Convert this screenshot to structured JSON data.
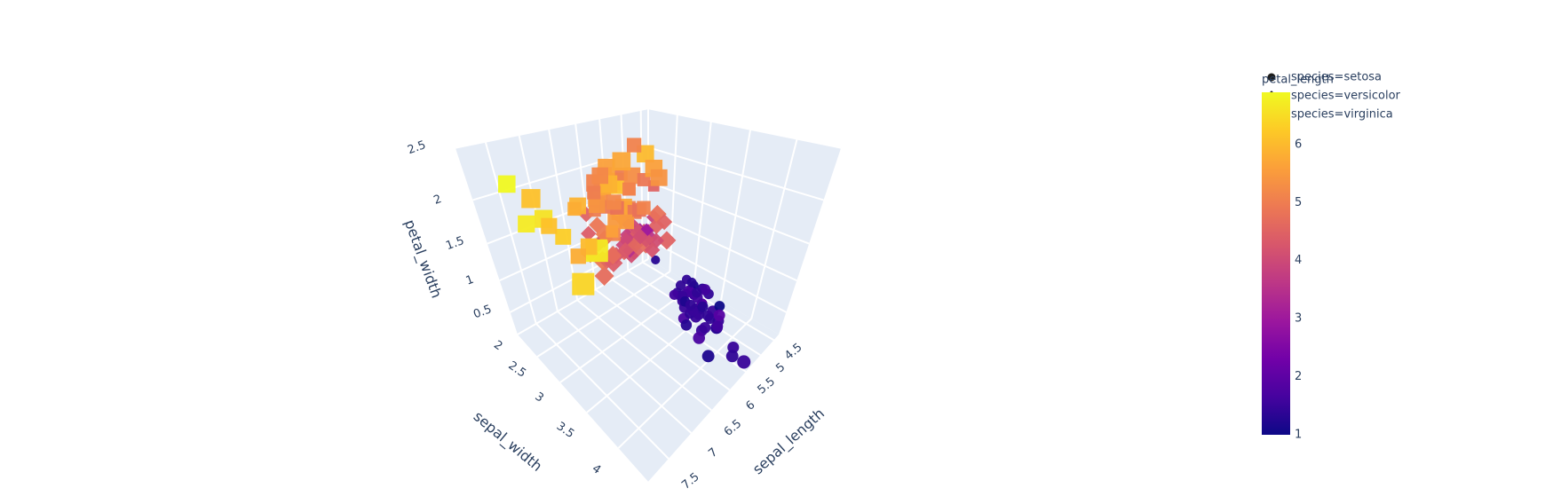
{
  "chart_data": {
    "type": "scatter3d",
    "xlabel": "sepal_length",
    "ylabel": "sepal_width",
    "zlabel": "petal_width",
    "xlim": [
      4.3,
      7.9
    ],
    "xticks": [
      4.5,
      5,
      5.5,
      6,
      6.5,
      7,
      7.5
    ],
    "ylim": [
      2,
      4.4
    ],
    "yticks": [
      2,
      2.5,
      3,
      3.5,
      4
    ],
    "zlim": [
      0.1,
      2.5
    ],
    "zticks": [
      0.5,
      1,
      1.5,
      2,
      2.5
    ],
    "grid": true,
    "legend": "top-right",
    "colorbar": {
      "title": "petal_length",
      "range": [
        1,
        6.9
      ],
      "ticks": [
        1,
        2,
        3,
        4,
        5,
        6
      ],
      "colorscale": [
        "#0d0887",
        "#46039f",
        "#7201a8",
        "#9c179e",
        "#bd3786",
        "#d8576b",
        "#ed7953",
        "#fb9f3a",
        "#fdca26",
        "#f0f921"
      ]
    },
    "series": [
      {
        "name": "species=setosa",
        "symbol": "circle",
        "x": [
          5.1,
          4.9,
          4.7,
          4.6,
          5.0,
          5.4,
          4.6,
          5.0,
          4.4,
          4.9,
          5.4,
          4.8,
          4.8,
          4.3,
          5.8,
          5.7,
          5.4,
          5.1,
          5.7,
          5.1,
          5.4,
          5.1,
          4.6,
          5.1,
          4.8,
          5.0,
          5.0,
          5.2,
          5.2,
          4.7,
          4.8,
          5.4,
          5.2,
          5.5,
          4.9,
          5.0,
          5.5,
          4.9,
          4.4,
          5.1,
          5.0,
          4.5,
          4.4,
          5.0,
          5.1,
          4.8,
          5.1,
          4.6,
          5.3,
          5.0
        ],
        "y": [
          3.5,
          3.0,
          3.2,
          3.1,
          3.6,
          3.9,
          3.4,
          3.4,
          2.9,
          3.1,
          3.7,
          3.4,
          3.0,
          3.0,
          4.0,
          4.4,
          3.9,
          3.5,
          3.8,
          3.8,
          3.4,
          3.7,
          3.6,
          3.3,
          3.4,
          3.0,
          3.4,
          3.5,
          3.4,
          3.2,
          3.1,
          3.4,
          4.1,
          4.2,
          3.1,
          3.2,
          3.5,
          3.6,
          3.0,
          3.4,
          3.5,
          2.3,
          3.2,
          3.5,
          3.8,
          3.0,
          3.8,
          3.2,
          3.7,
          3.3
        ],
        "z": [
          0.2,
          0.2,
          0.2,
          0.2,
          0.2,
          0.4,
          0.3,
          0.2,
          0.2,
          0.1,
          0.2,
          0.2,
          0.1,
          0.1,
          0.2,
          0.4,
          0.4,
          0.3,
          0.3,
          0.3,
          0.2,
          0.4,
          0.2,
          0.5,
          0.2,
          0.2,
          0.4,
          0.2,
          0.2,
          0.2,
          0.2,
          0.4,
          0.1,
          0.2,
          0.2,
          0.2,
          0.2,
          0.1,
          0.2,
          0.2,
          0.3,
          0.3,
          0.2,
          0.6,
          0.4,
          0.3,
          0.2,
          0.2,
          0.2,
          0.2
        ],
        "color_values": [
          1.4,
          1.4,
          1.3,
          1.5,
          1.4,
          1.7,
          1.4,
          1.5,
          1.4,
          1.5,
          1.5,
          1.6,
          1.4,
          1.1,
          1.2,
          1.5,
          1.3,
          1.4,
          1.7,
          1.5,
          1.7,
          1.5,
          1.0,
          1.7,
          1.9,
          1.6,
          1.6,
          1.5,
          1.4,
          1.6,
          1.6,
          1.5,
          1.5,
          1.4,
          1.5,
          1.2,
          1.3,
          1.4,
          1.3,
          1.5,
          1.3,
          1.3,
          1.3,
          1.6,
          1.9,
          1.4,
          1.6,
          1.4,
          1.5,
          1.4
        ]
      },
      {
        "name": "species=versicolor",
        "symbol": "diamond",
        "x": [
          7.0,
          6.4,
          6.9,
          5.5,
          6.5,
          5.7,
          6.3,
          4.9,
          6.6,
          5.2,
          5.0,
          5.9,
          6.0,
          6.1,
          5.6,
          6.7,
          5.6,
          5.8,
          6.2,
          5.6,
          5.9,
          6.1,
          6.3,
          6.1,
          6.4,
          6.6,
          6.8,
          6.7,
          6.0,
          5.7,
          5.5,
          5.5,
          5.8,
          6.0,
          5.4,
          6.0,
          6.7,
          6.3,
          5.6,
          5.5,
          5.5,
          6.1,
          5.8,
          5.0,
          5.6,
          5.7,
          5.7,
          6.2,
          5.1,
          5.7
        ],
        "y": [
          3.2,
          3.2,
          3.1,
          2.3,
          2.8,
          2.8,
          3.3,
          2.4,
          2.9,
          2.7,
          2.0,
          3.0,
          2.2,
          2.9,
          2.9,
          3.1,
          3.0,
          2.7,
          2.2,
          2.5,
          3.2,
          2.8,
          2.5,
          2.8,
          2.9,
          3.0,
          2.8,
          3.0,
          2.9,
          2.6,
          2.4,
          2.4,
          2.7,
          2.7,
          3.0,
          3.4,
          3.1,
          2.3,
          3.0,
          2.5,
          2.6,
          3.0,
          2.6,
          2.3,
          2.7,
          3.0,
          2.9,
          2.9,
          2.5,
          2.8
        ],
        "z": [
          1.4,
          1.5,
          1.5,
          1.3,
          1.5,
          1.3,
          1.6,
          1.0,
          1.3,
          1.4,
          1.0,
          1.5,
          1.0,
          1.4,
          1.3,
          1.4,
          1.5,
          1.0,
          1.5,
          1.1,
          1.8,
          1.3,
          1.5,
          1.2,
          1.3,
          1.4,
          1.4,
          1.7,
          1.5,
          1.0,
          1.1,
          1.0,
          1.2,
          1.6,
          1.5,
          1.6,
          1.5,
          1.3,
          1.3,
          1.3,
          1.2,
          1.4,
          1.2,
          1.0,
          1.3,
          1.2,
          1.3,
          1.3,
          1.1,
          1.3
        ],
        "color_values": [
          4.7,
          4.5,
          4.9,
          4.0,
          4.6,
          4.5,
          4.7,
          3.3,
          4.6,
          3.9,
          3.5,
          4.2,
          4.0,
          4.7,
          3.6,
          4.4,
          4.5,
          4.1,
          4.5,
          3.9,
          4.8,
          4.0,
          4.9,
          4.7,
          4.3,
          4.4,
          4.8,
          5.0,
          4.5,
          3.5,
          3.8,
          3.7,
          3.9,
          5.1,
          4.5,
          4.5,
          4.7,
          4.4,
          4.1,
          4.0,
          4.4,
          4.6,
          4.0,
          3.3,
          4.2,
          4.2,
          4.2,
          4.3,
          3.0,
          4.1
        ]
      },
      {
        "name": "species=virginica",
        "symbol": "square",
        "x": [
          6.3,
          5.8,
          7.1,
          6.3,
          6.5,
          7.6,
          4.9,
          7.3,
          6.7,
          7.2,
          6.5,
          6.4,
          6.8,
          5.7,
          5.8,
          6.4,
          6.5,
          7.7,
          7.7,
          6.0,
          6.9,
          5.6,
          7.7,
          6.3,
          6.7,
          7.2,
          6.2,
          6.1,
          6.4,
          7.2,
          7.4,
          7.9,
          6.4,
          6.3,
          6.1,
          7.7,
          6.3,
          6.4,
          6.0,
          6.9,
          6.7,
          6.9,
          5.8,
          6.8,
          6.7,
          6.7,
          6.3,
          6.5,
          6.2,
          5.9
        ],
        "y": [
          3.3,
          2.7,
          3.0,
          2.9,
          3.0,
          3.0,
          2.5,
          2.9,
          2.5,
          3.6,
          3.2,
          2.7,
          3.0,
          2.5,
          2.8,
          3.2,
          3.0,
          3.8,
          2.6,
          2.2,
          3.2,
          2.8,
          2.8,
          2.7,
          3.3,
          3.2,
          2.8,
          3.0,
          2.8,
          3.0,
          2.8,
          3.8,
          2.8,
          2.8,
          2.6,
          3.0,
          3.4,
          3.1,
          3.0,
          3.1,
          3.1,
          3.1,
          2.7,
          3.2,
          3.3,
          3.0,
          2.5,
          3.0,
          3.4,
          3.0
        ],
        "z": [
          2.5,
          1.9,
          2.1,
          1.8,
          2.2,
          2.1,
          1.7,
          1.8,
          1.8,
          2.5,
          2.0,
          1.9,
          2.1,
          2.0,
          2.4,
          2.3,
          1.8,
          2.2,
          2.3,
          1.5,
          2.3,
          2.0,
          2.0,
          1.8,
          2.1,
          1.8,
          1.8,
          1.8,
          2.1,
          1.6,
          1.9,
          2.0,
          2.2,
          1.5,
          1.4,
          2.3,
          2.4,
          1.8,
          1.8,
          2.1,
          2.4,
          2.3,
          1.9,
          2.3,
          2.5,
          2.3,
          1.9,
          2.0,
          2.3,
          1.8
        ],
        "color_values": [
          6.0,
          5.1,
          5.9,
          5.6,
          5.8,
          6.6,
          4.5,
          6.3,
          5.8,
          6.1,
          5.1,
          5.3,
          5.5,
          5.0,
          5.1,
          5.3,
          5.5,
          6.7,
          6.9,
          5.0,
          5.7,
          4.9,
          6.7,
          4.9,
          5.7,
          6.0,
          4.8,
          4.9,
          5.6,
          5.8,
          6.1,
          6.4,
          5.6,
          5.1,
          5.6,
          6.1,
          5.6,
          5.5,
          4.8,
          5.4,
          5.6,
          5.1,
          5.1,
          5.9,
          5.7,
          5.2,
          5.0,
          5.2,
          5.4,
          5.1
        ]
      }
    ]
  }
}
